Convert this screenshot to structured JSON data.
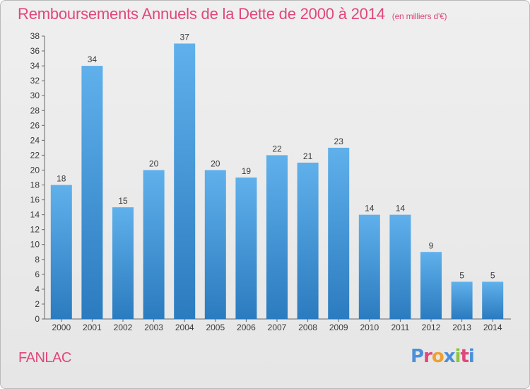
{
  "header": {
    "title": "Remboursements Annuels de la Dette de 2000 à 2014",
    "unit_note": "(en milliers d'€)"
  },
  "footer": {
    "commune": "FANLAC",
    "logo_text": "Proxiti"
  },
  "colors": {
    "title": "#e1477b",
    "bar_top": "#5fb0eb",
    "bar_bottom": "#2b7bbf",
    "logo_letters": [
      "#4a90d9",
      "#e1477b",
      "#f0a030",
      "#4a90d9",
      "#8cc63f",
      "#e1477b",
      "#4a90d9"
    ]
  },
  "chart_data": {
    "type": "bar",
    "title": "Remboursements Annuels de la Dette de 2000 à 2014",
    "xlabel": "",
    "ylabel": "",
    "ylim": [
      0,
      38
    ],
    "yticks": [
      0,
      2,
      4,
      6,
      8,
      10,
      12,
      14,
      16,
      18,
      20,
      22,
      24,
      26,
      28,
      30,
      32,
      34,
      36,
      38
    ],
    "grid": false,
    "categories": [
      "2000",
      "2001",
      "2002",
      "2003",
      "2004",
      "2005",
      "2006",
      "2007",
      "2008",
      "2009",
      "2010",
      "2011",
      "2012",
      "2013",
      "2014"
    ],
    "values": [
      18,
      34,
      15,
      20,
      37,
      20,
      19,
      22,
      21,
      23,
      14,
      14,
      9,
      5,
      5
    ]
  }
}
